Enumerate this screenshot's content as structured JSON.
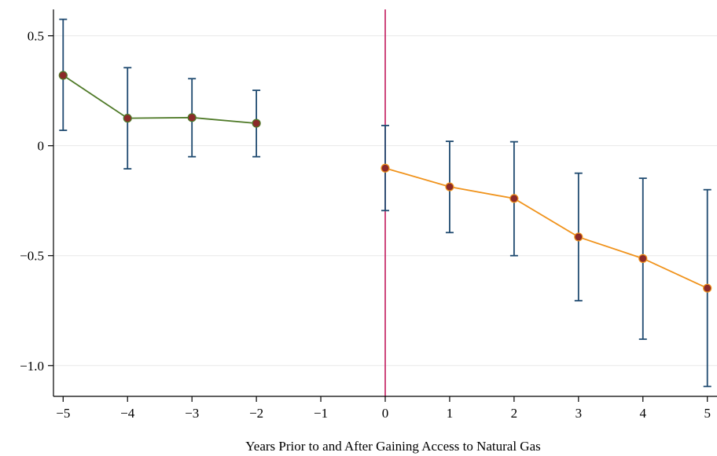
{
  "chart_data": {
    "type": "line",
    "title": "",
    "xlabel": "Years Prior to and After Gaining Access to Natural Gas",
    "ylabel": "",
    "xlim": [
      -5.15,
      5.15
    ],
    "ylim": [
      -1.14,
      0.62
    ],
    "x_ticks": [
      -5,
      -4,
      -3,
      -2,
      -1,
      0,
      1,
      2,
      3,
      4,
      5
    ],
    "x_tick_labels": [
      "−5",
      "−4",
      "−3",
      "−2",
      "−1",
      "0",
      "1",
      "2",
      "3",
      "4",
      "5"
    ],
    "y_ticks": [
      0.5,
      0,
      -0.5,
      -1.0
    ],
    "y_tick_labels": [
      "0.5",
      "0",
      "−0.5",
      "−1.0"
    ],
    "grid": true,
    "reference_line_x": 0,
    "series": [
      {
        "color": "#4f7a28",
        "x": [
          -5,
          -4,
          -3,
          -2
        ],
        "y": [
          0.32,
          0.125,
          0.128,
          0.102
        ],
        "ci_low": [
          0.07,
          -0.105,
          -0.05,
          -0.05
        ],
        "ci_high": [
          0.575,
          0.355,
          0.305,
          0.252
        ]
      },
      {
        "color": "#f0931c",
        "x": [
          0,
          1,
          2,
          3,
          4,
          5
        ],
        "y": [
          -0.102,
          -0.187,
          -0.24,
          -0.415,
          -0.513,
          -0.648
        ],
        "ci_low": [
          -0.295,
          -0.395,
          -0.5,
          -0.705,
          -0.88,
          -1.095
        ],
        "ci_high": [
          0.092,
          0.02,
          0.018,
          -0.125,
          -0.148,
          -0.2
        ]
      }
    ],
    "colors": {
      "error_bar": "#1f4a70",
      "marker_fill": "#8b2a2a",
      "reference_line": "#c2185b",
      "grid": "#e8e8e8",
      "axis": "#000000"
    }
  }
}
